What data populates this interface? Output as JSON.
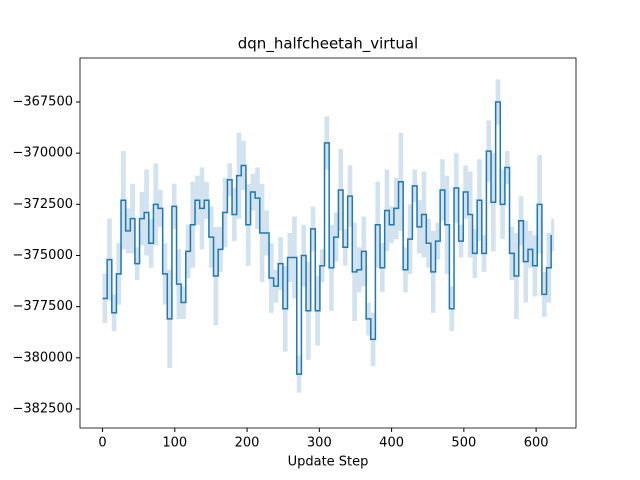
{
  "chart_data": {
    "type": "step",
    "title": "dqn_halfcheetah_virtual",
    "x_label": "Update Step",
    "x": [
      0,
      6.4,
      12.8,
      19.2,
      25.6,
      32,
      38.4,
      44.8,
      51.2,
      57.6,
      64,
      70.4,
      76.8,
      83.2,
      89.6,
      96,
      102.4,
      108.8,
      115.2,
      121.6,
      128,
      134.4,
      140.8,
      147.2,
      153.6,
      160,
      166.4,
      172.8,
      179.2,
      185.6,
      192,
      198.4,
      204.8,
      211.2,
      217.6,
      224,
      230.4,
      236.8,
      243.2,
      249.6,
      256,
      262.4,
      268.8,
      275.2,
      281.6,
      288,
      294.4,
      300.8,
      307.2,
      313.6,
      320,
      326.4,
      332.8,
      339.2,
      345.6,
      352,
      358.4,
      364.8,
      371.2,
      377.6,
      384,
      390.4,
      396.8,
      403.2,
      409.6,
      416,
      422.4,
      428.8,
      435.2,
      441.6,
      448,
      454.4,
      460.8,
      467.2,
      473.6,
      480,
      486.4,
      492.8,
      499.2,
      505.6,
      512,
      518.4,
      524.8,
      531.2,
      537.6,
      544,
      550.4,
      556.8,
      563.2,
      569.6,
      576,
      582.4,
      588.8,
      595.2,
      601.6,
      608,
      614.4,
      620.8
    ],
    "values": [
      -377100,
      -375200,
      -377800,
      -375900,
      -372300,
      -373800,
      -373200,
      -375400,
      -373200,
      -372900,
      -374400,
      -372500,
      -372700,
      -375900,
      -378100,
      -372600,
      -376400,
      -377300,
      -374800,
      -373500,
      -372300,
      -372700,
      -372300,
      -374100,
      -376000,
      -374700,
      -372900,
      -371300,
      -373000,
      -371100,
      -370600,
      -373500,
      -371900,
      -372200,
      -373900,
      -373900,
      -376100,
      -376500,
      -375400,
      -377600,
      -375100,
      -375100,
      -380800,
      -375000,
      -377700,
      -373700,
      -377700,
      -375500,
      -369500,
      -375600,
      -374100,
      -371800,
      -374600,
      -372100,
      -375800,
      -375700,
      -374800,
      -378100,
      -379100,
      -373500,
      -375600,
      -372800,
      -373500,
      -372700,
      -371400,
      -375700,
      -374200,
      -371600,
      -373600,
      -373000,
      -374400,
      -375800,
      -374300,
      -371800,
      -373500,
      -377600,
      -371700,
      -374300,
      -371900,
      -373000,
      -374900,
      -372300,
      -374900,
      -369900,
      -372400,
      -367500,
      -372500,
      -370700,
      -374900,
      -376000,
      -373300,
      -375300,
      -374700,
      -375500,
      -372500,
      -376900,
      -375600,
      -374000
    ],
    "errors": [
      1200,
      2000,
      900,
      1500,
      2400,
      1100,
      1700,
      800,
      1300,
      2100,
      1200,
      2000,
      900,
      1500,
      2400,
      1100,
      1700,
      800,
      1300,
      2100,
      1200,
      2000,
      900,
      1500,
      2400,
      1100,
      1700,
      800,
      1300,
      2100,
      1200,
      2000,
      900,
      1500,
      2400,
      1100,
      1700,
      800,
      1300,
      2100,
      1200,
      2000,
      900,
      1500,
      2400,
      1100,
      1700,
      800,
      1300,
      2100,
      1200,
      2000,
      900,
      1500,
      2400,
      1100,
      1700,
      800,
      1300,
      2100,
      1200,
      2000,
      900,
      1500,
      2400,
      1100,
      1700,
      800,
      1300,
      2100,
      1200,
      2000,
      900,
      1500,
      2400,
      1100,
      1700,
      800,
      1300,
      2100,
      1200,
      2000,
      900,
      1500,
      2400,
      1100,
      1700,
      800,
      1300,
      2100,
      1200,
      2000,
      900,
      1500,
      2400,
      1100,
      1700,
      800
    ],
    "color": "#1f77b4",
    "band_color": "#a6c8e0",
    "xlim": [
      -31.2,
      655.2
    ],
    "ylim": [
      -383430,
      -365350
    ],
    "xticks": [
      0,
      100,
      200,
      300,
      400,
      500,
      600
    ],
    "yticks": [
      {
        "value": -382500,
        "label": "−382500"
      },
      {
        "value": -380000,
        "label": "−380000"
      },
      {
        "value": -377500,
        "label": "−377500"
      },
      {
        "value": -375000,
        "label": "−375000"
      },
      {
        "value": -372500,
        "label": "−372500"
      },
      {
        "value": -370000,
        "label": "−370000"
      },
      {
        "value": -367500,
        "label": "−367500"
      }
    ]
  }
}
